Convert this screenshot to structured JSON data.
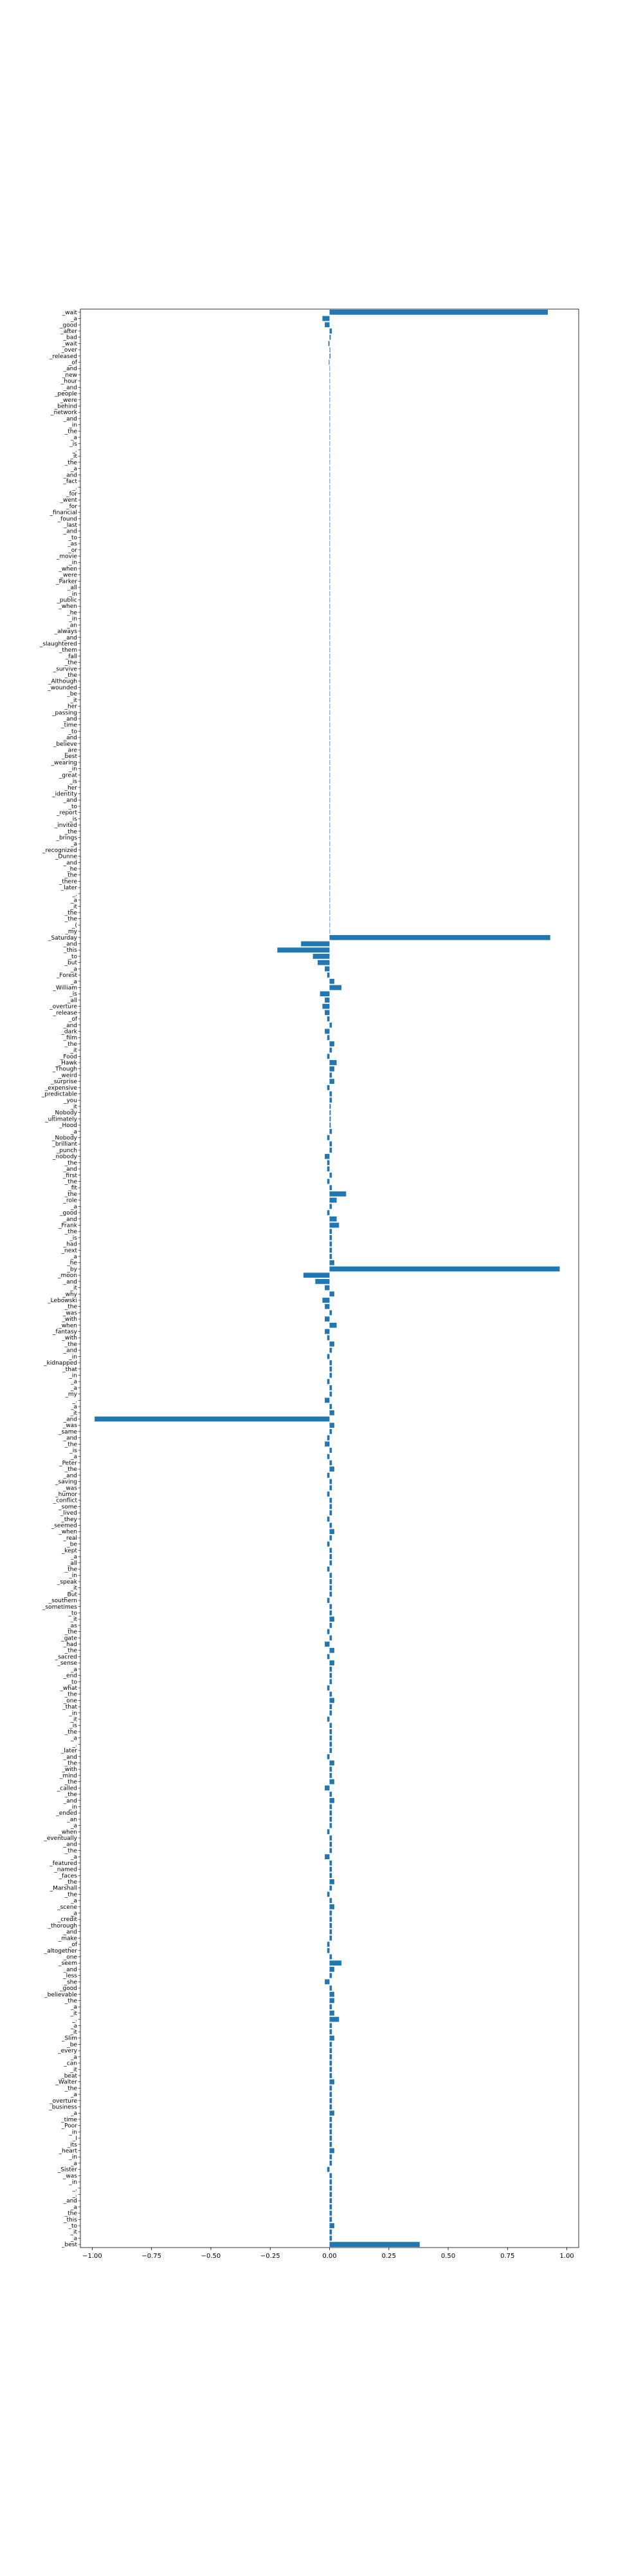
{
  "chart_data": {
    "type": "bar",
    "orientation": "horizontal",
    "title": "",
    "xlabel": "",
    "ylabel": "",
    "xlim": [
      -1.05,
      1.05
    ],
    "xticks": [
      -1.0,
      -0.75,
      -0.5,
      -0.25,
      0.0,
      0.25,
      0.5,
      0.75,
      1.0
    ],
    "xtick_labels": [
      "−1.00",
      "−0.75",
      "−0.50",
      "−0.25",
      "0.00",
      "0.25",
      "0.50",
      "0.75",
      "1.00"
    ],
    "grid": false,
    "legend": "none",
    "bar_color": "#1f77b4",
    "categories": [
      "_wait",
      "_a",
      "_good",
      "_after",
      "_bad",
      "_wait",
      "_over",
      "_released",
      "_of",
      "_and",
      "_new",
      "_hour",
      "_and",
      "_people",
      "_were",
      "_behind",
      "_network",
      "_and",
      "_in",
      "_the",
      "_a",
      "_is",
      "_.",
      "_it",
      "_the",
      "_a",
      "_and",
      "_fact",
      "_.",
      "_for",
      "_went",
      "_for",
      "_financial",
      "_found",
      "_last",
      "_and",
      "_to",
      "_as",
      "_or",
      "_movie",
      "_in",
      "_when",
      "_were",
      "_Parker",
      "_all",
      "_in",
      "_public",
      "_when",
      "_he",
      "_in",
      "_an",
      "_always",
      "_and",
      "_slaughtered",
      "_them",
      "_fall",
      "_the",
      "_survive",
      "_the",
      "_Although",
      "_wounded",
      "_be",
      "_it",
      "_her",
      "_passing",
      "_and",
      "_time",
      "_to",
      "_and",
      "_believe",
      "_are",
      "_best",
      "_wearing",
      "_in",
      "_great",
      "_is",
      "_her",
      "_identity",
      "_and",
      "_to",
      "_report",
      "_is",
      "_invited",
      "_the",
      "_brings",
      "_a",
      "_recognized",
      "_Dunne",
      "_and",
      "_he",
      "_the",
      "_there",
      "_later",
      "_.",
      "_a",
      "_it",
      "_the",
      "_the",
      "_(",
      "_my",
      "_Saturday",
      "_and",
      "_this",
      "_to",
      "_but",
      "_a",
      "_Forest",
      "_a",
      "_William",
      "_is",
      "_all",
      "_overture",
      "_release",
      "_of",
      "_and",
      "_dark",
      "_film",
      "_the",
      "_it",
      "_Food",
      "_Hawk",
      "_Though",
      "_weird",
      "_surprise",
      "_expensive",
      "_predictable",
      "_you",
      "_it",
      "_Nobody",
      "_ultimately",
      "_Hood",
      "_a",
      "_Nobody",
      "_brilliant",
      "_punch",
      "_nobody",
      "_the",
      "_and",
      "_first",
      "_the",
      "_fit",
      "_the",
      "_role",
      "_a",
      "_good",
      "_and",
      "_Frank",
      "_the",
      "_is",
      "_had",
      "_next",
      "_a",
      "_he",
      "_by",
      "_moon",
      "_and",
      "_it",
      "_why",
      "_Lebowski",
      "_the",
      "_was",
      "_with",
      "_when",
      "_fantasy",
      "_with",
      "_the",
      "_and",
      "_in",
      "_kidnapped",
      "_that",
      "_in",
      "_a",
      "_a",
      "_my",
      "_.",
      "_a",
      "_it",
      "_and",
      "_was",
      "_same",
      "_and",
      "_the",
      "_is",
      "_a",
      "_Peter",
      "_the",
      "_and",
      "_saving",
      "_was",
      "_humor",
      "_conflict",
      "_some",
      "_lived",
      "_they",
      "_seemed",
      "_when",
      "_real",
      "_be",
      "_kept",
      "_a",
      "_all",
      "_the",
      "_in",
      "_speak",
      "_it",
      "_But",
      "_southern",
      "_sometimes",
      "_to",
      "_it",
      "_as",
      "_the",
      "_gate",
      "_had",
      "_the",
      "_sacred",
      "_sense",
      "_a",
      "_end",
      "_to",
      "_what",
      "_the",
      "_one",
      "_that",
      "_in",
      "_it",
      "_is",
      "_the",
      "_a",
      "_.",
      "_later",
      "_and",
      "_the",
      "_with",
      "_mind",
      "_the",
      "_called",
      "_the",
      "_and",
      "_in",
      "_ended",
      "_an",
      "_a",
      "_when",
      "_eventually",
      "_and",
      "_the",
      "_a",
      "_featured",
      "_named",
      "_faces",
      "_the",
      "_Marshall",
      "_the",
      "_a",
      "_scene",
      "_a",
      "_credit",
      "_thorough",
      "_and",
      "_make",
      "_of",
      "_altogether",
      "_one",
      "_seem",
      "_and",
      "_less",
      "_she",
      "_good",
      "_believable",
      "_the",
      "_a",
      "_it",
      "_.",
      "_a",
      "_it",
      "_Slim",
      "_be",
      "_every",
      "_a",
      "_can",
      "_it",
      "_beat",
      "_Walter",
      "_the",
      "_a",
      "_overture",
      "_business",
      "_a",
      "_time",
      "_Poor",
      "_in",
      "_I",
      "_its",
      "_heart",
      "_in",
      "_a",
      "_Sister",
      "_was",
      "_in",
      "_.",
      "_.",
      "_and",
      "_a",
      "_the",
      "_this",
      "_to",
      "_it",
      "_a",
      "_best"
    ],
    "values": [
      0.92,
      -0.03,
      -0.02,
      0.01,
      0.005,
      -0.005,
      0.003,
      0.004,
      -0.003,
      0.002,
      0.002,
      0.002,
      0.002,
      0.002,
      0.002,
      0.002,
      0.002,
      0.002,
      0.002,
      0.002,
      0.002,
      0.002,
      0.002,
      0.002,
      0.002,
      0.002,
      0.002,
      0.002,
      0.002,
      0.002,
      0.002,
      0.002,
      0.002,
      0.002,
      0.002,
      0.002,
      0.002,
      0.002,
      0.002,
      0.002,
      0.002,
      0.002,
      0.002,
      0.002,
      0.002,
      0.002,
      0.002,
      0.002,
      0.002,
      0.002,
      0.002,
      0.002,
      0.002,
      0.002,
      0.002,
      0.002,
      0.002,
      0.002,
      0.002,
      0.002,
      0.002,
      0.002,
      0.002,
      0.002,
      0.002,
      0.002,
      0.002,
      0.002,
      0.002,
      0.002,
      0.002,
      0.002,
      0.002,
      0.002,
      0.002,
      0.002,
      0.002,
      0.002,
      0.002,
      0.002,
      0.002,
      0.002,
      0.002,
      0.002,
      0.002,
      0.002,
      0.002,
      0.002,
      0.002,
      0.002,
      0.002,
      0.002,
      0.002,
      0.002,
      0.002,
      0.002,
      0.002,
      0.002,
      0.002,
      0.002,
      0.93,
      -0.12,
      -0.22,
      -0.07,
      -0.05,
      -0.02,
      -0.01,
      0.02,
      0.05,
      -0.04,
      -0.02,
      -0.03,
      -0.02,
      -0.01,
      0.01,
      -0.02,
      -0.01,
      0.02,
      0.01,
      -0.01,
      0.03,
      0.02,
      0.01,
      0.02,
      -0.01,
      0.01,
      0.01,
      0.005,
      0.005,
      0.005,
      0.005,
      0.01,
      -0.01,
      0.01,
      0.01,
      -0.02,
      -0.01,
      -0.01,
      0.01,
      -0.01,
      0.01,
      0.07,
      0.03,
      0.01,
      -0.01,
      0.03,
      0.04,
      0.01,
      0.01,
      0.01,
      0.01,
      0.01,
      0.02,
      0.97,
      -0.11,
      -0.06,
      -0.02,
      0.02,
      -0.03,
      -0.02,
      0.01,
      -0.02,
      0.03,
      -0.02,
      -0.01,
      0.02,
      0.01,
      -0.01,
      0.01,
      0.01,
      0.01,
      -0.01,
      0.01,
      0.01,
      -0.02,
      0.01,
      0.02,
      -0.99,
      0.02,
      0.01,
      -0.01,
      -0.02,
      0.01,
      -0.01,
      0.01,
      0.02,
      -0.01,
      0.01,
      0.01,
      -0.01,
      0.01,
      0.01,
      0.01,
      -0.01,
      0.01,
      0.02,
      0.01,
      -0.01,
      0.01,
      0.01,
      0.01,
      -0.01,
      0.01,
      0.01,
      0.01,
      0.01,
      -0.01,
      0.01,
      0.01,
      0.02,
      0.01,
      -0.01,
      0.01,
      -0.02,
      0.02,
      -0.01,
      0.02,
      0.01,
      0.01,
      0.01,
      -0.01,
      0.01,
      0.02,
      0.01,
      0.01,
      -0.01,
      0.01,
      0.01,
      0.01,
      0.01,
      0.01,
      -0.01,
      0.02,
      0.01,
      0.01,
      0.02,
      -0.02,
      0.01,
      0.02,
      0.01,
      0.01,
      0.01,
      0.01,
      -0.01,
      0.01,
      0.01,
      0.01,
      -0.02,
      0.01,
      0.01,
      0.01,
      0.02,
      0.01,
      -0.01,
      0.01,
      0.02,
      0.01,
      0.01,
      0.01,
      0.01,
      0.01,
      -0.01,
      -0.01,
      0.01,
      0.05,
      0.02,
      0.01,
      -0.02,
      0.01,
      0.02,
      0.02,
      0.01,
      0.02,
      0.04,
      0.01,
      0.01,
      0.02,
      0.01,
      0.01,
      0.01,
      0.01,
      0.01,
      0.01,
      0.02,
      0.01,
      0.01,
      0.01,
      0.01,
      0.02,
      0.01,
      0.01,
      0.01,
      0.01,
      0.01,
      0.02,
      0.01,
      0.01,
      -0.01,
      0.01,
      0.01,
      0.01,
      0.01,
      0.01,
      0.01,
      0.01,
      0.01,
      0.02,
      0.01,
      0.01,
      0.38
    ]
  }
}
